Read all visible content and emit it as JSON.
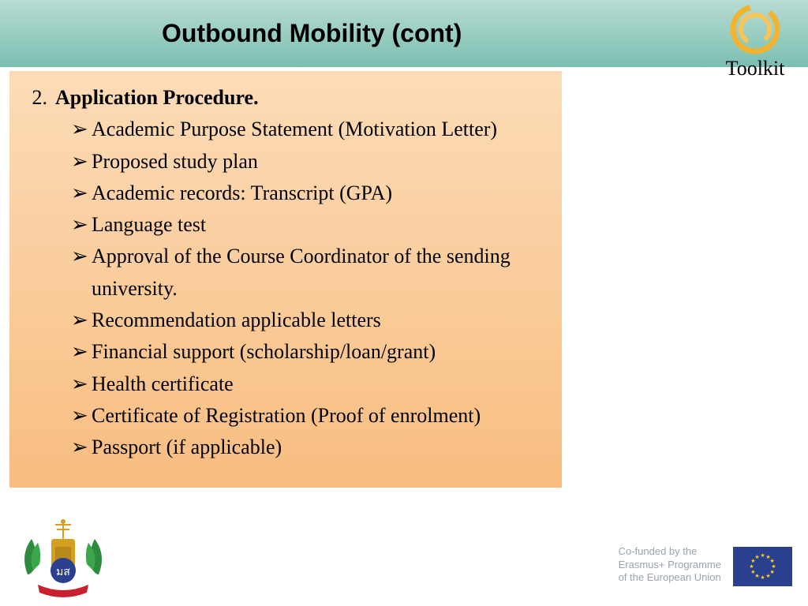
{
  "header": {
    "title": "Outbound Mobility (cont)",
    "toolkit_label": "Toolkit"
  },
  "content": {
    "number": "2.",
    "heading": "Application Procedure.",
    "bullet_glyph": "➢",
    "items": [
      "Academic Purpose Statement (Motivation Letter)",
      "Proposed study plan",
      "Academic records: Transcript (GPA)",
      "Language test",
      "Approval of the Course Coordinator of the sending university.",
      "Recommendation applicable letters",
      "Financial support (scholarship/loan/grant)",
      "Health certificate",
      "Certificate of Registration (Proof of enrolment)",
      "Passport (if applicable)"
    ]
  },
  "footer": {
    "funding_line1": "Co-funded by the",
    "funding_line2": "Erasmus+ Programme",
    "funding_line3": "of the European Union"
  },
  "colors": {
    "header_top": "#b8dcd4",
    "header_bottom": "#7bbfb0",
    "box_top": "#fcdcb8",
    "box_bottom": "#f8bd80",
    "eu_blue": "#2b3f8f",
    "eu_gold": "#f7d117",
    "toolkit_ring": "#f2b430"
  }
}
